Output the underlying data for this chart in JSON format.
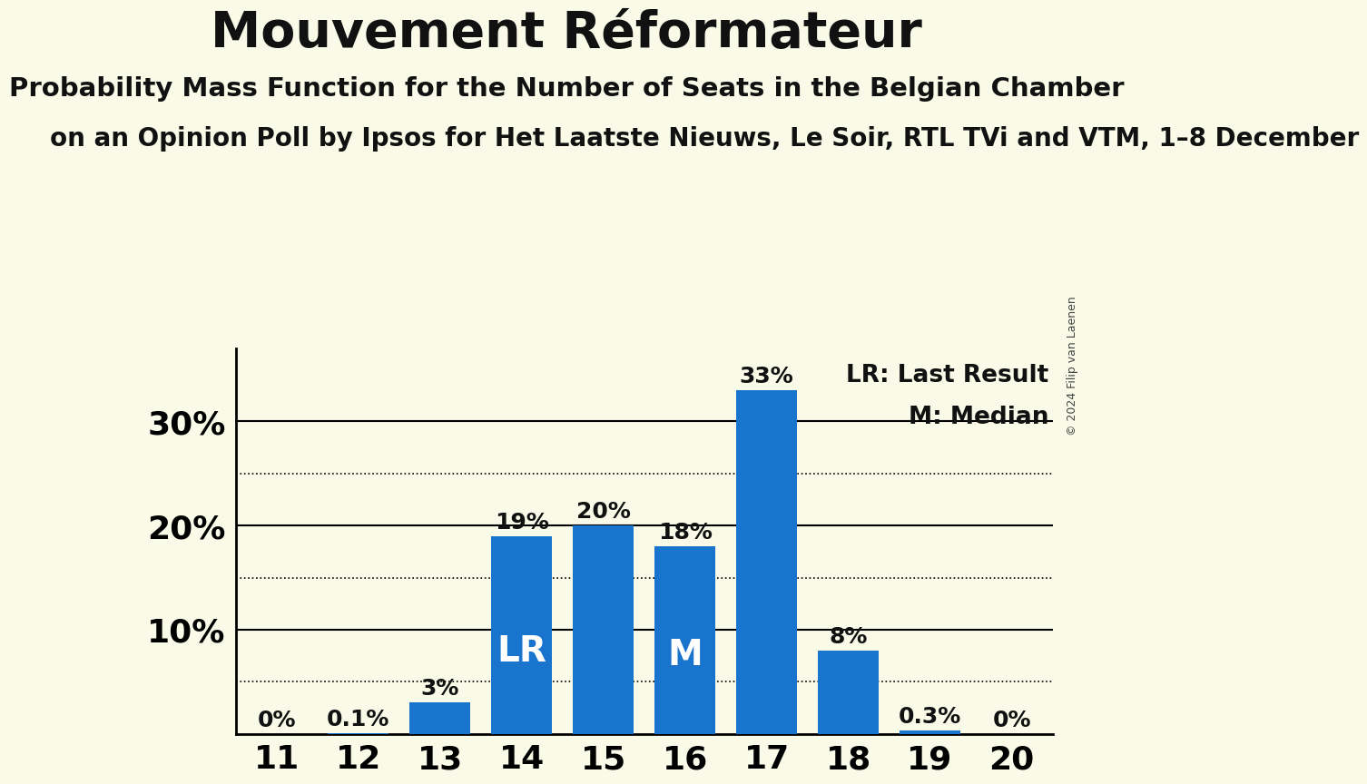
{
  "title": "Mouvement Réformateur",
  "subtitle": "Probability Mass Function for the Number of Seats in the Belgian Chamber",
  "subsubtitle": "on an Opinion Poll by Ipsos for Het Laatste Nieuws, Le Soir, RTL TVi and VTM, 1–8 December",
  "categories": [
    11,
    12,
    13,
    14,
    15,
    16,
    17,
    18,
    19,
    20
  ],
  "values": [
    0.0,
    0.001,
    0.03,
    0.19,
    0.2,
    0.18,
    0.33,
    0.08,
    0.003,
    0.0
  ],
  "value_labels": [
    "0%",
    "0.1%",
    "3%",
    "19%",
    "20%",
    "18%",
    "33%",
    "8%",
    "0.3%",
    "0%"
  ],
  "bar_color": "#1874CD",
  "background_color": "#FAFAE8",
  "text_color": "#111111",
  "lr_bar_index": 3,
  "median_bar_index": 5,
  "lr_label": "LR",
  "median_label": "M",
  "legend_lr": "LR: Last Result",
  "legend_m": "M: Median",
  "copyright": "© 2024 Filip van Laenen",
  "ylim": [
    0,
    0.37
  ],
  "yticks": [
    0.0,
    0.1,
    0.2,
    0.3
  ],
  "ytick_labels": [
    "",
    "10%",
    "20%",
    "30%"
  ],
  "dotted_lines": [
    0.05,
    0.15,
    0.25
  ],
  "solid_lines": [
    0.1,
    0.2,
    0.3
  ]
}
